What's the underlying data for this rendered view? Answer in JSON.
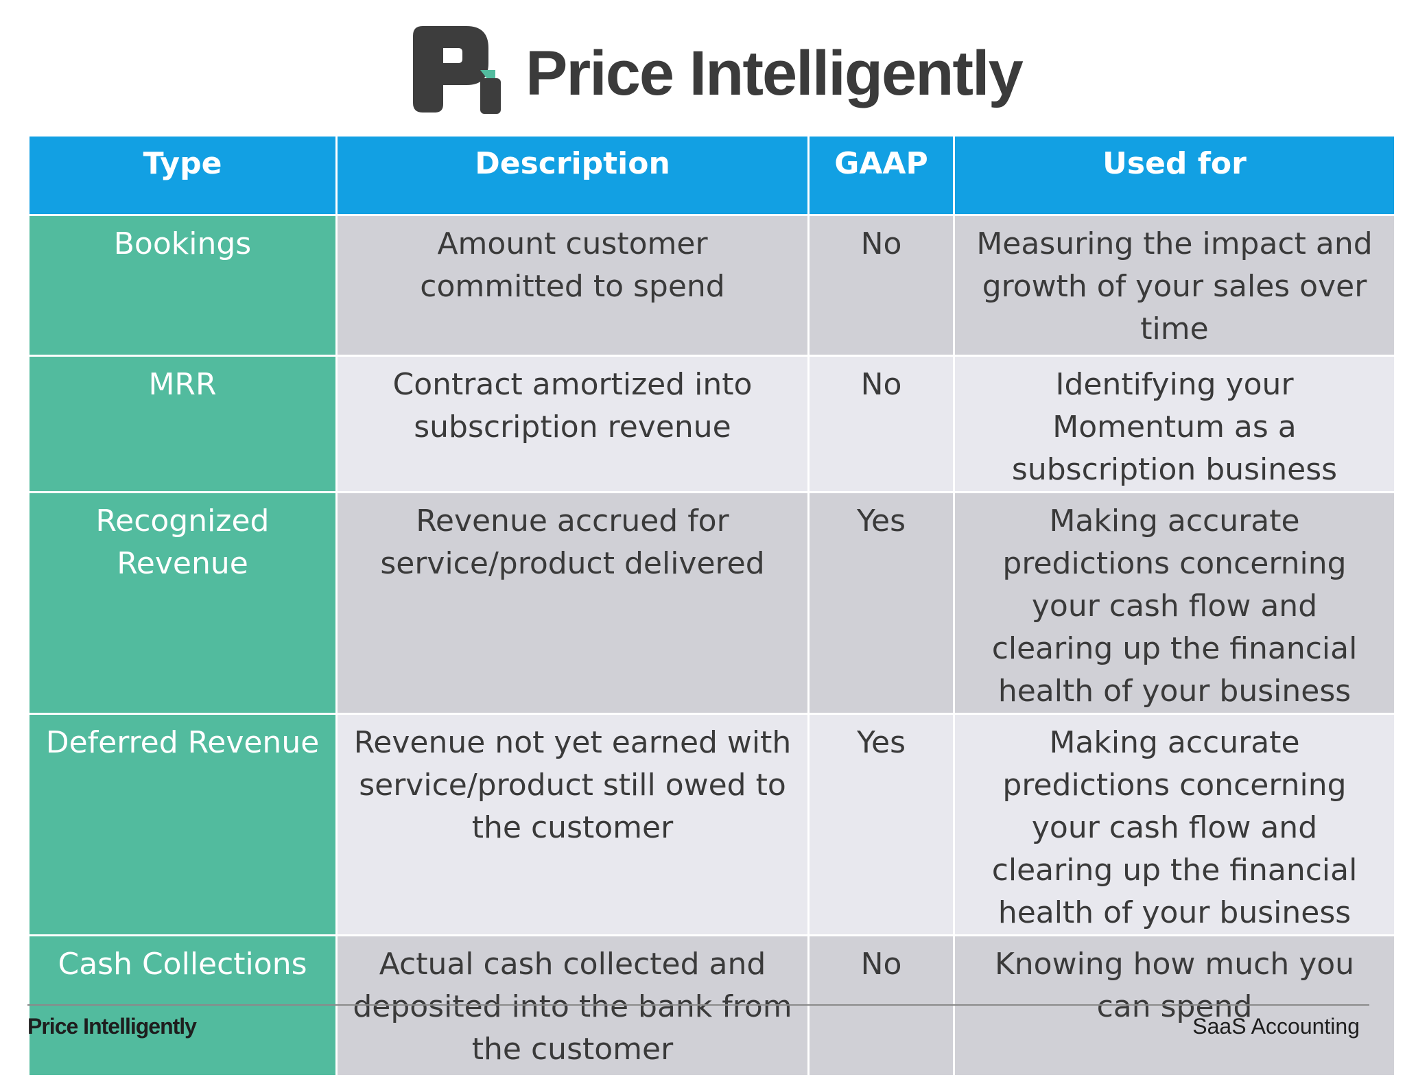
{
  "header": {
    "brand_name": "Price Intelligently",
    "logo_colors": {
      "dark": "#3d3d3d",
      "accent": "#52bb9e"
    }
  },
  "table": {
    "columns": [
      "Type",
      "Description",
      "GAAP",
      "Used for"
    ],
    "rows": [
      {
        "type": "Bookings",
        "description": "Amount customer committed to spend",
        "gaap": "No",
        "used_for": "Measuring the impact and growth of your sales over time"
      },
      {
        "type": "MRR",
        "description": "Contract amortized into subscription revenue",
        "gaap": "No",
        "used_for": "Identifying your Momentum as a subscription business"
      },
      {
        "type": "Recognized Revenue",
        "description": "Revenue accrued for service/product delivered",
        "gaap": "Yes",
        "used_for": "Making accurate predictions concerning your cash flow and clearing up the financial health of your business"
      },
      {
        "type": "Deferred Revenue",
        "description": "Revenue not yet earned with service/product still owed to the customer",
        "gaap": "Yes",
        "used_for": "Making accurate predictions concerning your cash flow and clearing up the financial health of your business"
      },
      {
        "type": "Cash Collections",
        "description": "Actual cash collected and deposited into the bank from the customer",
        "gaap": "No",
        "used_for": "Knowing how much you can spend"
      }
    ],
    "colors": {
      "header_bg": "#12a0e3",
      "type_bg": "#52bb9e",
      "row_dark": "#d0d0d6",
      "row_light": "#e8e8ee"
    }
  },
  "footer": {
    "brand": "Price Intelligently",
    "section": "SaaS Accounting"
  }
}
